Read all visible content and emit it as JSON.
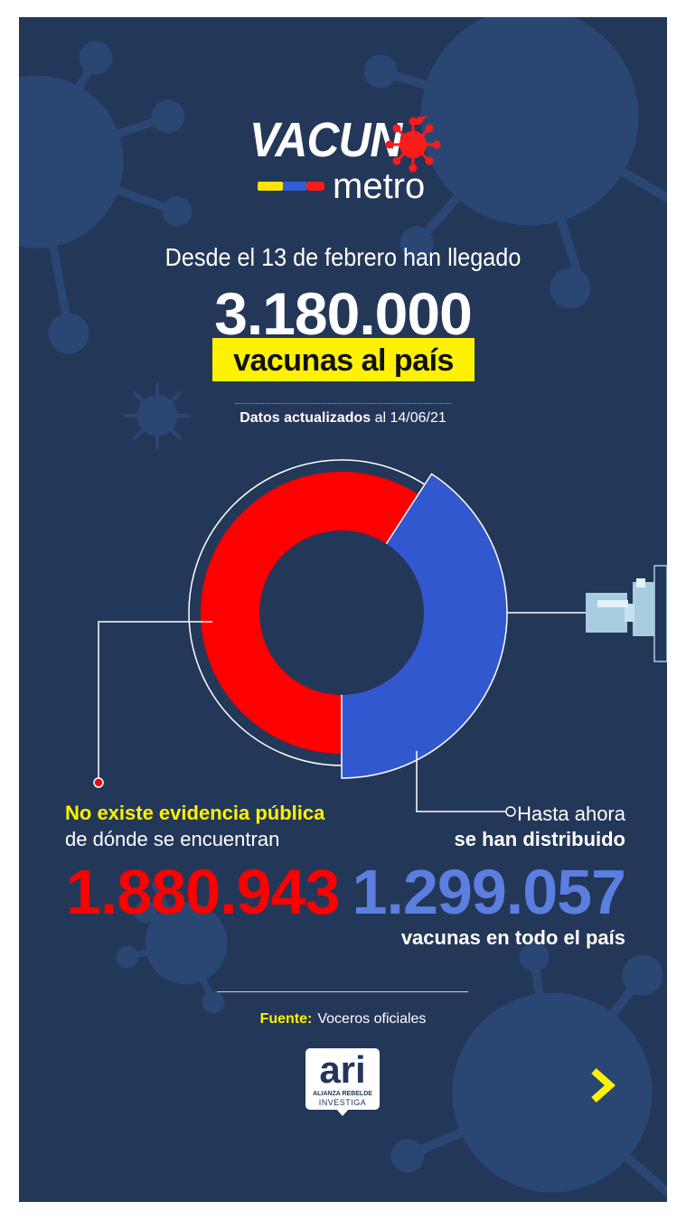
{
  "logo": {
    "word_main": "VACUN",
    "word_sub": "metro"
  },
  "headline": "Desde el 13 de febrero han llegado",
  "total_arrived": "3.180.000",
  "total_caption": "vacunas al país",
  "updated": {
    "label": "Datos actualizados",
    "date_text": "al 14/06/21"
  },
  "chart_data": {
    "type": "pie",
    "title": "",
    "total": 3180000,
    "slices": [
      {
        "name": "No existe evidencia pública de dónde se encuentran",
        "value": 1880943,
        "color": "#ff0000"
      },
      {
        "name": "Hasta ahora se han distribuido",
        "value": 1299057,
        "color": "#3258cf"
      }
    ]
  },
  "left_stat": {
    "label_highlight": "No existe evidencia pública",
    "label_rest": "de dónde se encuentran",
    "value": "1.880.943",
    "color": "#ff0000"
  },
  "right_stat": {
    "label_line1": "Hasta ahora",
    "label_line2": "se han distribuido",
    "value": "1.299.057",
    "caption": "vacunas en todo el país",
    "color": "#5b7fe0"
  },
  "source": {
    "label": "Fuente:",
    "value": "Voceros oficiales"
  },
  "brand": {
    "main": "ari",
    "line1": "ALIANZA REBELDE",
    "line2": "INVESTIGA"
  },
  "colors": {
    "background": "#233759",
    "accent_yellow": "#fff200",
    "red": "#ff0000",
    "blue": "#3258cf"
  },
  "icons": {
    "next": "chevron-right-icon",
    "syringe": "syringe-icon",
    "virus": "virus-icon"
  }
}
